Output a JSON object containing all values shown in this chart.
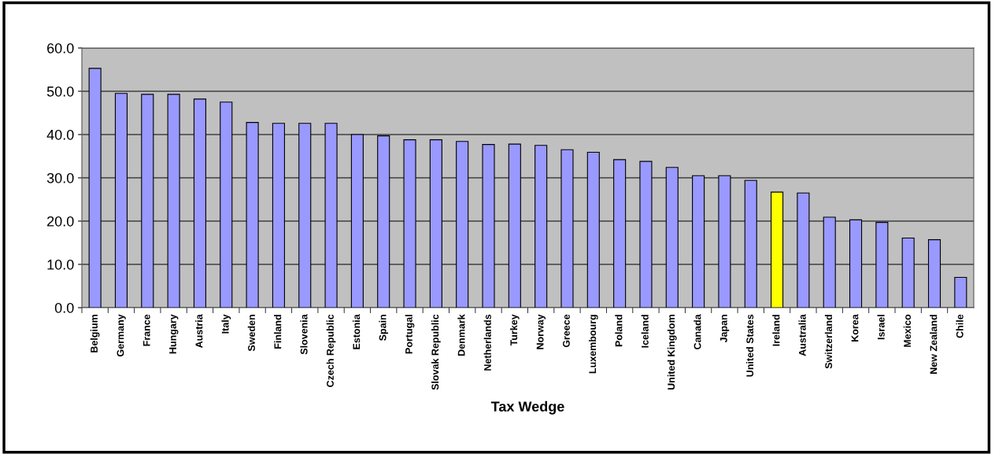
{
  "chart_data": {
    "type": "bar",
    "xlabel": "Tax Wedge",
    "categories": [
      "Belgium",
      "Germany",
      "France",
      "Hungary",
      "Austria",
      "Italy",
      "Sweden",
      "Finland",
      "Slovenia",
      "Czech Republic",
      "Estonia",
      "Spain",
      "Portugal",
      "Slovak Republic",
      "Denmark",
      "Netherlands",
      "Turkey",
      "Norway",
      "Greece",
      "Luxembourg",
      "Poland",
      "Iceland",
      "United Kingdom",
      "Canada",
      "Japan",
      "United States",
      "Ireland",
      "Australia",
      "Switzerland",
      "Korea",
      "Israel",
      "Mexico",
      "New Zealand",
      "Chile"
    ],
    "values": [
      55.3,
      49.5,
      49.3,
      49.3,
      48.2,
      47.5,
      42.8,
      42.6,
      42.6,
      42.6,
      40.0,
      39.7,
      38.8,
      38.8,
      38.4,
      37.7,
      37.8,
      37.5,
      36.5,
      35.9,
      34.2,
      33.8,
      32.4,
      30.5,
      30.5,
      29.4,
      26.7,
      26.5,
      20.9,
      20.3,
      19.7,
      16.1,
      15.7,
      7.0
    ],
    "colors": [
      "#9999ff",
      "#9999ff",
      "#9999ff",
      "#9999ff",
      "#9999ff",
      "#9999ff",
      "#9999ff",
      "#9999ff",
      "#9999ff",
      "#9999ff",
      "#9999ff",
      "#9999ff",
      "#9999ff",
      "#9999ff",
      "#9999ff",
      "#9999ff",
      "#9999ff",
      "#9999ff",
      "#9999ff",
      "#9999ff",
      "#9999ff",
      "#9999ff",
      "#9999ff",
      "#9999ff",
      "#9999ff",
      "#9999ff",
      "#ffff00",
      "#9999ff",
      "#9999ff",
      "#9999ff",
      "#9999ff",
      "#9999ff",
      "#9999ff",
      "#9999ff"
    ],
    "ylim": [
      0,
      60
    ],
    "yticks": [
      {
        "value": 0,
        "label": "0.0"
      },
      {
        "value": 10,
        "label": "10.0"
      },
      {
        "value": 20,
        "label": "20.0"
      },
      {
        "value": 30,
        "label": "30.0"
      },
      {
        "value": 40,
        "label": "40.0"
      },
      {
        "value": 50,
        "label": "50.0"
      },
      {
        "value": 60,
        "label": "60.0"
      }
    ],
    "grid": "y",
    "legend": false
  }
}
